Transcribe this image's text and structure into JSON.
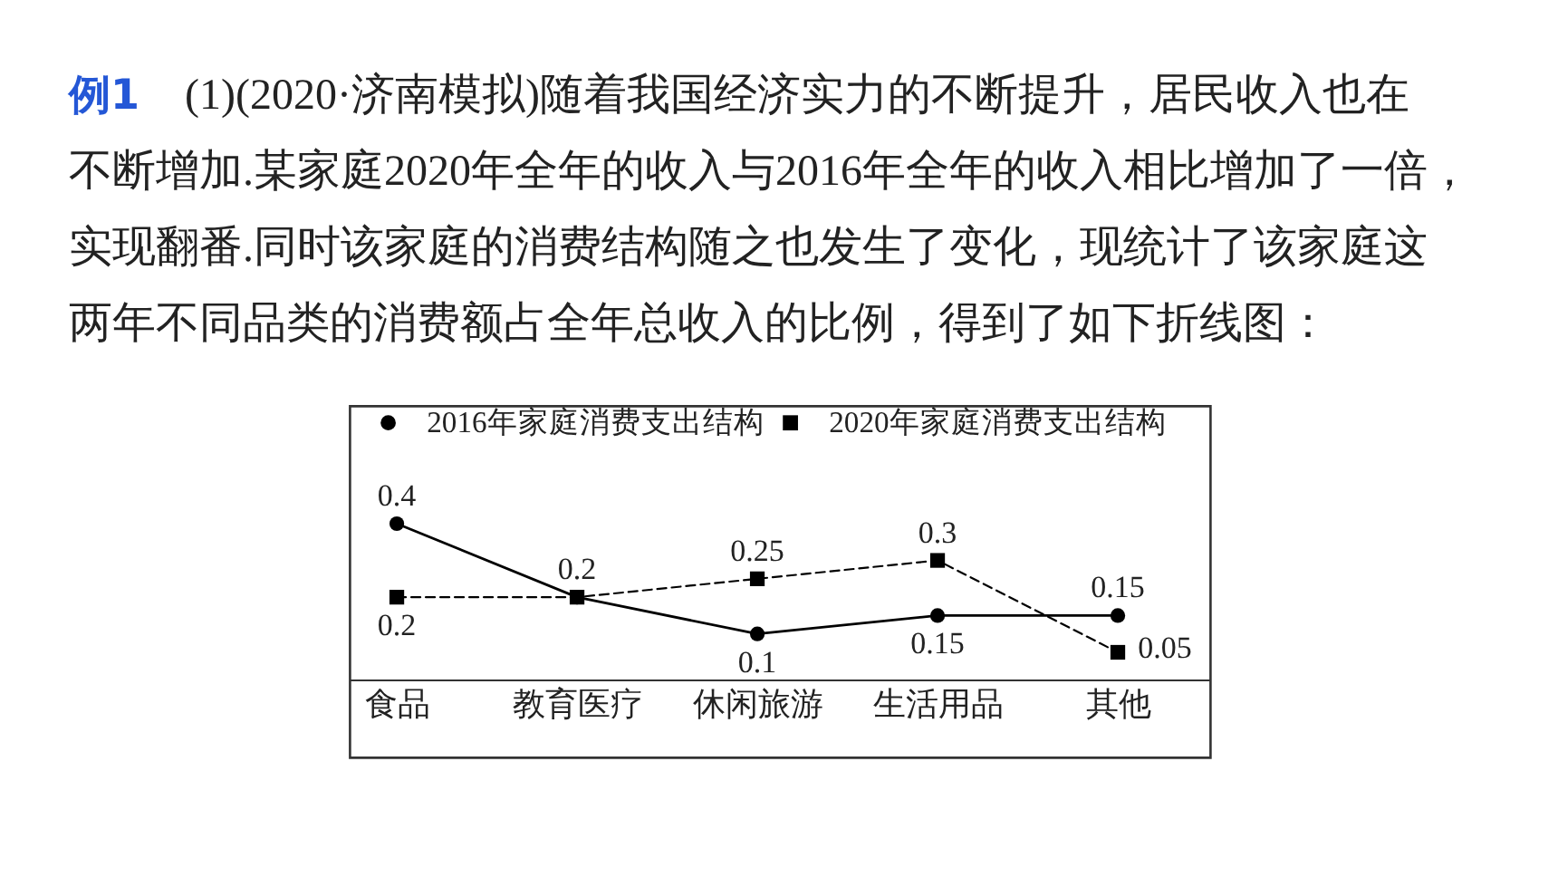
{
  "chart_data": {
    "type": "line",
    "title": "例1 (1)(2020·济南模拟)随着我国经济实力的不断提升，居民收入也在不断增加.某家庭2020年全年的收入与2016年全年的收入相比增加了一倍，实现翻番.同时该家庭的消费结构随之也发生了变化，现统计了该家庭这两年不同品类的消费额占全年总收入的比例，得到了如下折线图：",
    "categories": [
      "食品",
      "教育医疗",
      "休闲旅游",
      "生活用品",
      "其他"
    ],
    "series": [
      {
        "name": "2016年家庭消费支出结构",
        "color": "#000000",
        "values": [
          0.4,
          0.2,
          0.1,
          0.15,
          0.15
        ],
        "value_labels": [
          "0.4",
          "0.2",
          "0.1",
          "0.15",
          "0.15"
        ],
        "marker": "circle",
        "line_style": "solid"
      },
      {
        "name": "2020年家庭消费支出结构",
        "color": "#000000",
        "values": [
          0.2,
          0.2,
          0.25,
          0.3,
          0.05
        ],
        "value_labels": [
          "0.2",
          null,
          "0.25",
          "0.3",
          "0.05"
        ],
        "marker": "square",
        "line_style": "dashed"
      }
    ],
    "legend": "top"
  }
}
